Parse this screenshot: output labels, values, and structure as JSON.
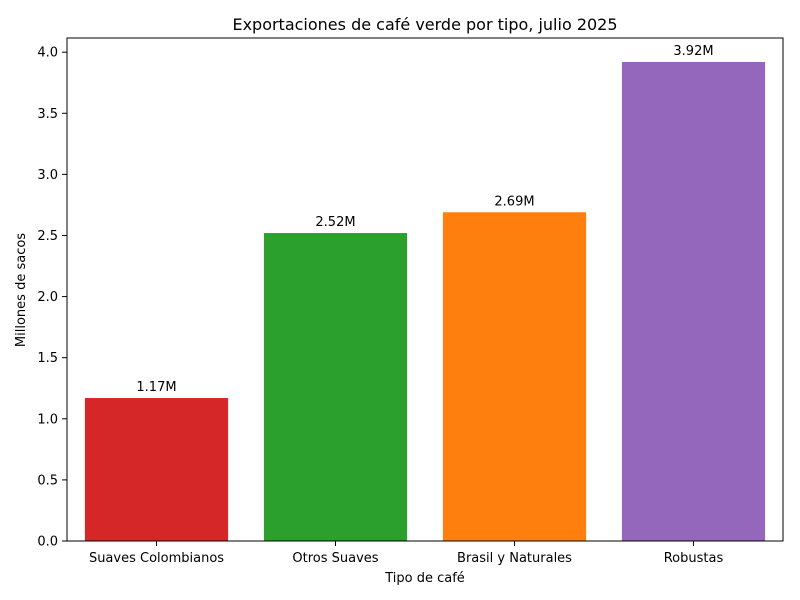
{
  "chart_data": {
    "type": "bar",
    "title": "Exportaciones de café verde por tipo, julio 2025",
    "xlabel": "Tipo de café",
    "ylabel": "Millones de sacos",
    "categories": [
      "Suaves Colombianos",
      "Otros Suaves",
      "Brasil y Naturales",
      "Robustas"
    ],
    "values": [
      1.17,
      2.52,
      2.69,
      3.92
    ],
    "data_labels": [
      "1.17M",
      "2.52M",
      "2.69M",
      "3.92M"
    ],
    "colors": [
      "#d62728",
      "#2ca02c",
      "#ff7f0e",
      "#9467bd"
    ],
    "ylim": [
      0,
      4.116
    ],
    "yticks": [
      0.0,
      0.5,
      1.0,
      1.5,
      2.0,
      2.5,
      3.0,
      3.5,
      4.0
    ],
    "ytick_labels": [
      "0.0",
      "0.5",
      "1.0",
      "1.5",
      "2.0",
      "2.5",
      "3.0",
      "3.5",
      "4.0"
    ],
    "grid": false,
    "legend": "none"
  }
}
